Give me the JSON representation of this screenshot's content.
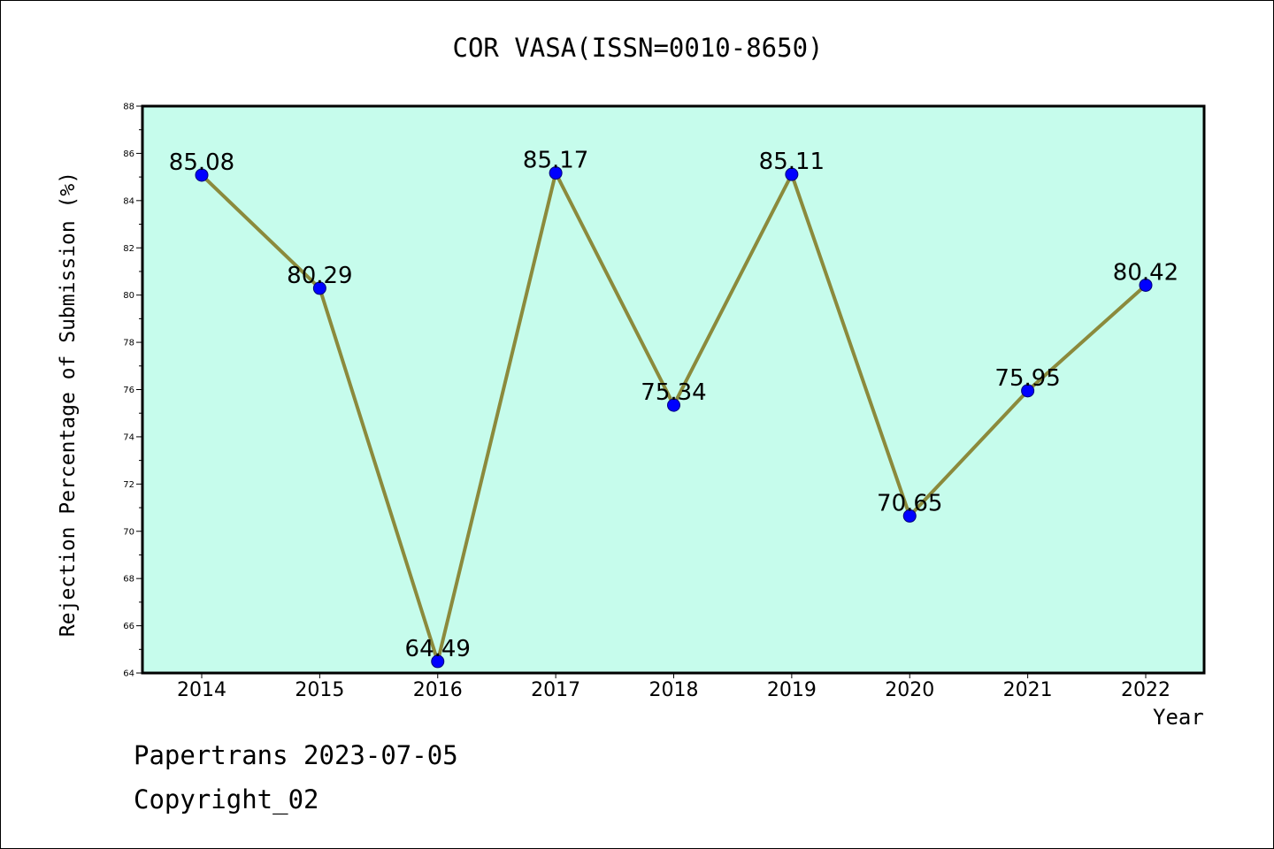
{
  "chart_data": {
    "type": "line",
    "title": "COR VASA(ISSN=0010-8650)",
    "xlabel": "Year",
    "ylabel": "Rejection Percentage of Submission (%)",
    "categories": [
      "2014",
      "2015",
      "2016",
      "2017",
      "2018",
      "2019",
      "2020",
      "2021",
      "2022"
    ],
    "values": [
      85.08,
      80.29,
      64.49,
      85.17,
      75.34,
      85.11,
      70.65,
      75.95,
      80.42
    ],
    "data_labels": [
      "85.08",
      "80.29",
      "64.49",
      "85.17",
      "75.34",
      "85.11",
      "70.65",
      "75.95",
      "80.42"
    ],
    "ylim": [
      64,
      88
    ],
    "yticks": [
      "64",
      "66",
      "68",
      "70",
      "72",
      "74",
      "76",
      "78",
      "80",
      "82",
      "84",
      "86",
      "88"
    ],
    "grid": false,
    "colors": {
      "plot_background": "#c6fcec",
      "line": "#8b8a3c",
      "marker": "#0000ff"
    }
  },
  "footer": {
    "line1": "Papertrans 2023-07-05",
    "line2": "Copyright_02"
  }
}
